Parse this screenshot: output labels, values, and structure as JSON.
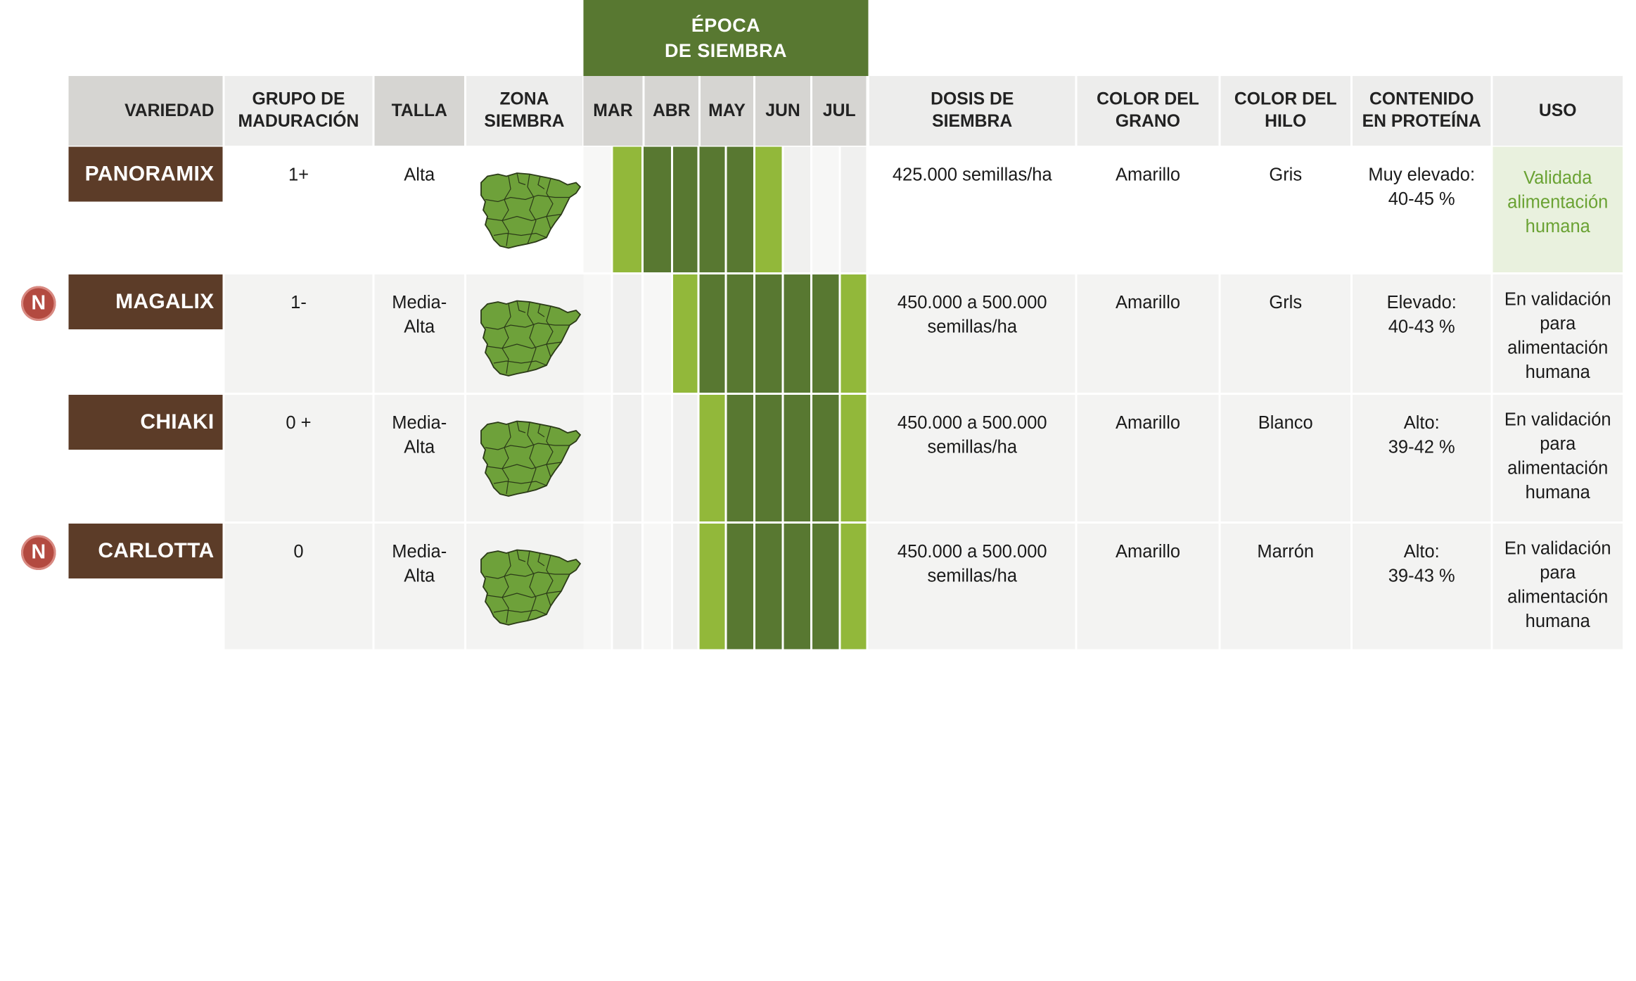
{
  "epoca_title": [
    "ÉPOCA",
    "DE SIEMBRA"
  ],
  "headers": {
    "variedad": "VARIEDAD",
    "grupo": [
      "GRUPO DE",
      "MADURACIÓN"
    ],
    "talla": "TALLA",
    "zona": [
      "ZONA",
      "SIEMBRA"
    ],
    "months": [
      "MAR",
      "ABR",
      "MAY",
      "JUN",
      "JUL"
    ],
    "dosis": [
      "DOSIS DE",
      "SIEMBRA"
    ],
    "color_grano": [
      "COLOR DEL",
      "GRANO"
    ],
    "color_hilo": [
      "COLOR DEL",
      "HILO"
    ],
    "proteina": [
      "CONTENIDO",
      "EN PROTEÍNA"
    ],
    "uso": "USO"
  },
  "badge_label": "N",
  "colors": {
    "header_green": "#587831",
    "dark_green": "#587831",
    "light_green": "#92b83a",
    "variety_brown": "#5c3c28",
    "badge_red": "#b34a40",
    "map_green": "#6ea13a",
    "uso_green_text": "#6aa233",
    "uso_green_bg": "#e9f1de"
  },
  "map_icon": "spain-map-icon",
  "rows": [
    {
      "name": "PANORAMIX",
      "is_new": false,
      "grupo": "1+",
      "talla": [
        "Alta"
      ],
      "sowing": [
        "none",
        "light",
        "dark",
        "dark",
        "dark",
        "dark",
        "light",
        "none",
        "none",
        "none"
      ],
      "dosis": [
        "425.000 semillas/ha"
      ],
      "color_grano": "Amarillo",
      "color_hilo": "Gris",
      "proteina": [
        "Muy elevado:",
        "40-45 %"
      ],
      "uso": [
        "Validada",
        "alimentación",
        "humana"
      ],
      "uso_highlight": true
    },
    {
      "name": "MAGALIX",
      "is_new": true,
      "grupo": "1-",
      "talla": [
        "Media-",
        "Alta"
      ],
      "sowing": [
        "none",
        "none",
        "none",
        "light",
        "dark",
        "dark",
        "dark",
        "dark",
        "dark",
        "light"
      ],
      "dosis": [
        "450.000 a 500.000",
        "semillas/ha"
      ],
      "color_grano": "Amarillo",
      "color_hilo": "Grls",
      "proteina": [
        "Elevado:",
        "40-43 %"
      ],
      "uso": [
        "En validación",
        "para",
        "alimentación",
        "humana"
      ],
      "uso_highlight": false
    },
    {
      "name": "CHIAKI",
      "is_new": false,
      "grupo": "0 +",
      "talla": [
        "Media-",
        "Alta"
      ],
      "sowing": [
        "none",
        "none",
        "none",
        "none",
        "light",
        "dark",
        "dark",
        "dark",
        "dark",
        "light"
      ],
      "dosis": [
        "450.000 a 500.000",
        "semillas/ha"
      ],
      "color_grano": "Amarillo",
      "color_hilo": "Blanco",
      "proteina": [
        "Alto:",
        "39-42 %"
      ],
      "uso": [
        "En validación",
        "para",
        "alimentación",
        "humana"
      ],
      "uso_highlight": false
    },
    {
      "name": "CARLOTTA",
      "is_new": true,
      "grupo": "0",
      "talla": [
        "Media-",
        "Alta"
      ],
      "sowing": [
        "none",
        "none",
        "none",
        "none",
        "light",
        "dark",
        "dark",
        "dark",
        "dark",
        "light"
      ],
      "dosis": [
        "450.000 a 500.000",
        "semillas/ha"
      ],
      "color_grano": "Amarillo",
      "color_hilo": "Marrón",
      "proteina": [
        "Alto:",
        "39-43 %"
      ],
      "uso": [
        "En validación",
        "para",
        "alimentación",
        "humana"
      ],
      "uso_highlight": false
    }
  ]
}
